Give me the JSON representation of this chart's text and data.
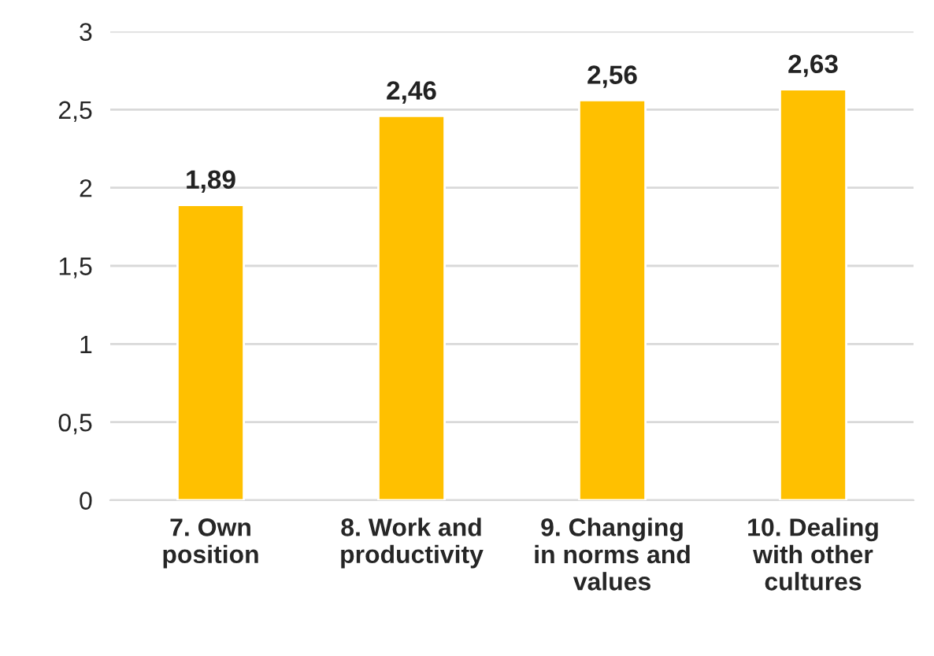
{
  "chart_data": {
    "type": "bar",
    "categories": [
      "7. Own\nposition",
      "8. Work and\nproductivity",
      "9. Changing\nin norms and\nvalues",
      "10. Dealing\nwith other\ncultures"
    ],
    "values": [
      1.89,
      2.46,
      2.56,
      2.63
    ],
    "value_labels": [
      "1,89",
      "2,46",
      "2,56",
      "2,63"
    ],
    "color": "#ffc000",
    "ylim": [
      0,
      3
    ],
    "yticks": [
      0,
      {
        "value": 0.5,
        "label": "0,5"
      },
      1,
      {
        "value": 1.5,
        "label": "1,5"
      },
      2,
      {
        "value": 2.5,
        "label": "2,5"
      },
      3
    ],
    "grid": "y",
    "legend": false
  }
}
